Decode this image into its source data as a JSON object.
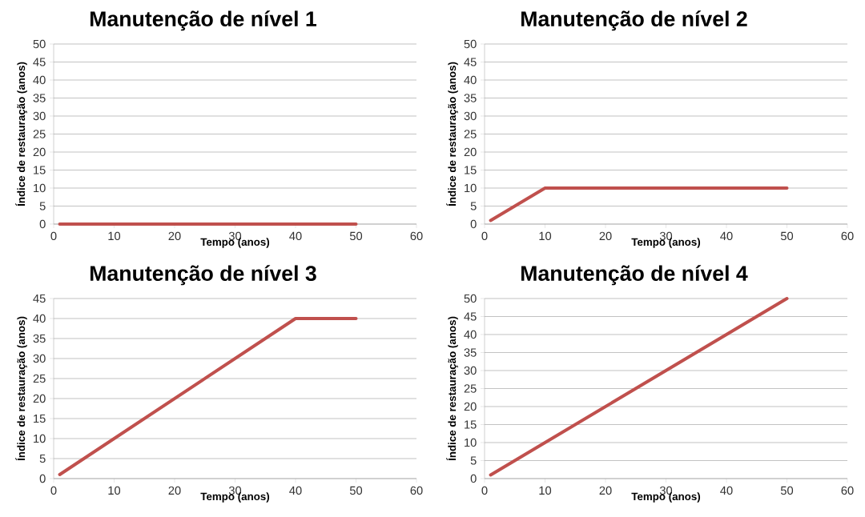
{
  "chart_data": [
    {
      "type": "line",
      "title": "Manutenção  de nível 1",
      "xlabel": "Tempo (anos)",
      "ylabel": "Índice de restauração (anos)",
      "xlim": [
        0,
        60
      ],
      "xticks": [
        0,
        10,
        20,
        30,
        40,
        50,
        60
      ],
      "ylim": [
        0,
        50
      ],
      "yticks": [
        0,
        5,
        10,
        15,
        20,
        25,
        30,
        35,
        40,
        45,
        50
      ],
      "grid": "y",
      "marker": "none",
      "line_style": "solid",
      "series": [
        {
          "color": "#c0504d",
          "x": [
            1,
            50
          ],
          "values": [
            0,
            0
          ]
        }
      ]
    },
    {
      "type": "line",
      "title": "Manutenção de nível 2",
      "xlabel": "Tempo (anos)",
      "ylabel": "Índice de restauração (anos)",
      "xlim": [
        0,
        60
      ],
      "xticks": [
        0,
        10,
        20,
        30,
        40,
        50,
        60
      ],
      "ylim": [
        0,
        50
      ],
      "yticks": [
        0,
        5,
        10,
        15,
        20,
        25,
        30,
        35,
        40,
        45,
        50
      ],
      "grid": "y",
      "marker": "none",
      "line_style": "solid",
      "series": [
        {
          "color": "#c0504d",
          "x": [
            1,
            10,
            50
          ],
          "values": [
            1,
            10,
            10
          ]
        }
      ]
    },
    {
      "type": "line",
      "title": "Manutenção de nível 3",
      "xlabel": "Tempo (anos)",
      "ylabel": "Índice de restauração (anos)",
      "xlim": [
        0,
        60
      ],
      "xticks": [
        0,
        10,
        20,
        30,
        40,
        50,
        60
      ],
      "ylim": [
        0,
        45
      ],
      "yticks": [
        0,
        5,
        10,
        15,
        20,
        25,
        30,
        35,
        40,
        45
      ],
      "grid": "y",
      "marker": "none",
      "line_style": "solid",
      "series": [
        {
          "color": "#c0504d",
          "x": [
            1,
            40,
            50
          ],
          "values": [
            1,
            40,
            40
          ]
        }
      ]
    },
    {
      "type": "line",
      "title": "Manutenção de nível 4",
      "xlabel": "Tempo (anos)",
      "ylabel": "Índice de restauração (anos)",
      "xlim": [
        0,
        60
      ],
      "xticks": [
        0,
        10,
        20,
        30,
        40,
        50,
        60
      ],
      "ylim": [
        0,
        50
      ],
      "yticks": [
        0,
        5,
        10,
        15,
        20,
        25,
        30,
        35,
        40,
        45,
        50
      ],
      "grid": "y",
      "marker": "none",
      "line_style": "solid",
      "series": [
        {
          "color": "#c0504d",
          "x": [
            1,
            50
          ],
          "values": [
            1,
            50
          ]
        }
      ]
    }
  ]
}
